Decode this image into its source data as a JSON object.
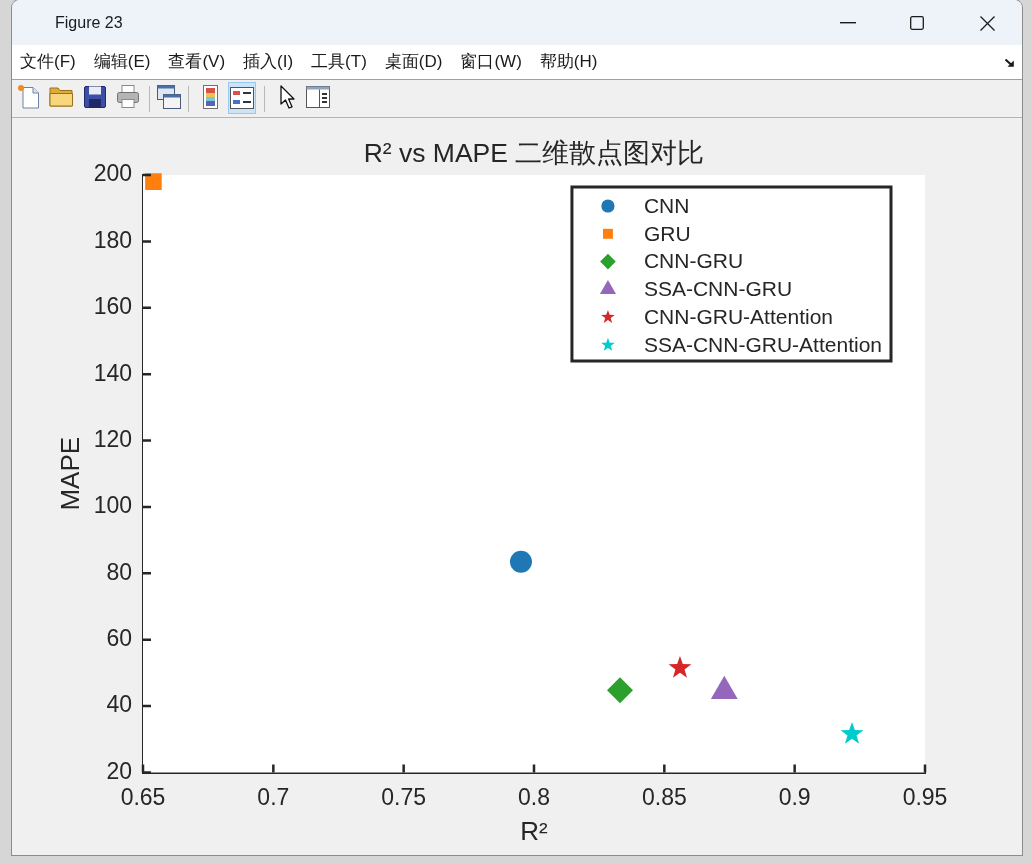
{
  "chart_data": {
    "type": "scatter",
    "title": "R² vs MAPE 二维散点图对比",
    "xlabel": "R²",
    "ylabel": "MAPE",
    "annotations": [
      "Figure 23",
      "文件(F)",
      "编辑(E)",
      "查看(V)",
      "插入(I)",
      "工具(T)",
      "桌面(D)",
      "窗口(W)",
      "帮助(H)"
    ],
    "xlim": [
      0.65,
      0.95
    ],
    "xticks": [
      0.65,
      0.7,
      0.75,
      0.8,
      0.85,
      0.9,
      0.95
    ],
    "ylim": [
      20,
      200
    ],
    "yticks": [
      20,
      40,
      60,
      80,
      100,
      120,
      140,
      160,
      180,
      200
    ],
    "legend": "top right",
    "series": [
      {
        "name": "CNN",
        "color": "#1f77b4",
        "marker": "circle",
        "x": [
          0.795
        ],
        "values": [
          83.5
        ]
      },
      {
        "name": "GRU",
        "color": "#ff7f0e",
        "marker": "square",
        "x": [
          0.654
        ],
        "values": [
          198
        ]
      },
      {
        "name": "CNN-GRU",
        "color": "#2ca02c",
        "marker": "diamond",
        "x": [
          0.833
        ],
        "values": [
          44.8
        ]
      },
      {
        "name": "SSA-CNN-GRU",
        "color": "#9467bd",
        "marker": "triangle",
        "x": [
          0.873
        ],
        "values": [
          44.5
        ]
      },
      {
        "name": "CNN-GRU-Attention",
        "color": "#d62728",
        "marker": "star",
        "x": [
          0.856
        ],
        "values": [
          51.5
        ]
      },
      {
        "name": "SSA-CNN-GRU-Attention",
        "color": "#00cccc",
        "marker": "star",
        "x": [
          0.922
        ],
        "values": [
          31.6
        ]
      }
    ]
  }
}
